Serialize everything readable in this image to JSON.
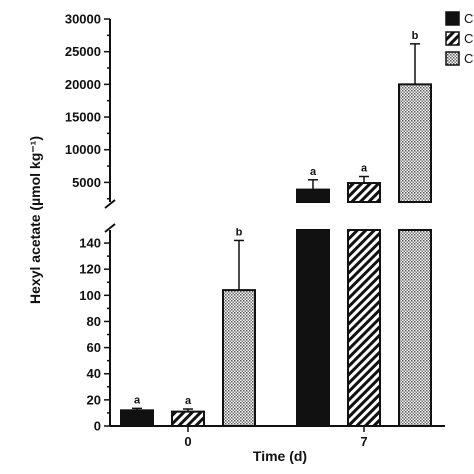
{
  "chart_data": {
    "type": "bar",
    "xlabel": "Time (d)",
    "ylabel": "Hexyl acetate (µmol kg⁻¹)",
    "categories": [
      "0",
      "7"
    ],
    "axis_break": {
      "lower_range": [
        0,
        150
      ],
      "upper_range": [
        2000,
        30000
      ]
    },
    "lower_ticks": [
      0,
      20,
      40,
      60,
      80,
      100,
      120,
      140
    ],
    "upper_ticks": [
      5000,
      10000,
      15000,
      20000,
      25000,
      30000
    ],
    "series": [
      {
        "name": "C",
        "pattern": "solid",
        "color": "#111111",
        "values": [
          12,
          3900
        ],
        "errors": [
          1.5,
          1500
        ],
        "labels": [
          "a",
          "a"
        ]
      },
      {
        "name": "C",
        "pattern": "diagonal-hatch",
        "color": "#111111",
        "values": [
          11,
          4900
        ],
        "errors": [
          2,
          1000
        ],
        "labels": [
          "a",
          "a"
        ]
      },
      {
        "name": "C",
        "pattern": "dotted",
        "color": "#111111",
        "values": [
          104,
          20000
        ],
        "errors": [
          38,
          6200
        ],
        "labels": [
          "b",
          "b"
        ]
      }
    ],
    "legend_position": "top-right"
  }
}
